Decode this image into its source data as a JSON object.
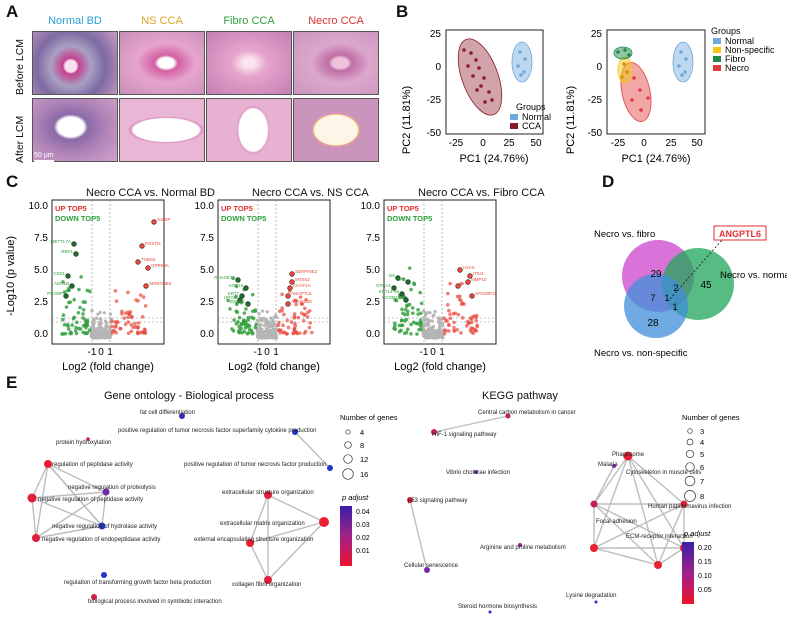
{
  "panel_letters": {
    "a": "A",
    "b": "B",
    "c": "C",
    "d": "D",
    "e": "E"
  },
  "panel_a": {
    "columns": [
      "Normal BD",
      "NS CCA",
      "Fibro CCA",
      "Necro CCA"
    ],
    "column_colors": [
      "#29a3d6",
      "#e0a020",
      "#2e9e3a",
      "#e03030"
    ],
    "rows": [
      "Before LCM",
      "After LCM"
    ],
    "scale_bar": "50 μm"
  },
  "panel_b": {
    "left": {
      "xlabel": "PC1 (24.76%)",
      "ylabel": "PC2 (11.81%)",
      "legend_title": "Groups",
      "legend": [
        "Normal",
        "CCA"
      ],
      "colors": [
        "#6fa8dc",
        "#8b1a2b"
      ]
    },
    "right": {
      "xlabel": "PC1 (24.76%)",
      "ylabel": "PC2 (11.81%)",
      "legend_title": "Groups",
      "legend": [
        "Normal",
        "Non-specific",
        "Fibro",
        "Necro"
      ],
      "colors": [
        "#6fa8dc",
        "#f5c518",
        "#1f8a4c",
        "#e33b3b"
      ]
    },
    "xticks": [
      "-25",
      "0",
      "25",
      "50"
    ],
    "yticks": [
      "25",
      "0",
      "-25",
      "-50"
    ]
  },
  "panel_c": {
    "plots": [
      {
        "title": "Necro CCA vs. Normal BD",
        "up_genes": [
          "S100P",
          "POSTN",
          "THBS2",
          "GPR63A",
          "SERPINE5"
        ],
        "down_genes": [
          "METTL7A",
          "RBP1",
          "CD01",
          "ADH1B",
          "PCGBP"
        ]
      },
      {
        "title": "Necro CCA vs. NS CCA",
        "up_genes": [
          "SERPINE2",
          "MTSS2",
          "CHAF1A",
          "ANGPTL6",
          "ANKRD36"
        ],
        "down_genes": [
          "RNASET2",
          "KRT19",
          "KRT7",
          "HPGD",
          "ENPP1"
        ]
      },
      {
        "title": "Necro CCA vs. Fibro CCA",
        "up_genes": [
          "H2AX",
          "ITIH1",
          "MMP10",
          "NT5",
          "SPS28P11"
        ],
        "down_genes": [
          "NS",
          "SP2",
          "GFRA1",
          "KRT14-69",
          "ECGB2A3"
        ]
      }
    ],
    "up_label": "UP TOP5",
    "down_label": "DOWN TOP5",
    "xlabel": "Log2 (fold change)",
    "ylabel": "-Log10 (p value)",
    "yticks": [
      "10.0",
      "7.5",
      "5.0",
      "2.5",
      "0.0"
    ],
    "xticks": [
      "-1",
      "0",
      "1"
    ]
  },
  "panel_d": {
    "sets": [
      "Necro vs. fibro",
      "Necro vs. normal",
      "Necro vs. non-specific"
    ],
    "counts": {
      "fibro_only": "29",
      "normal_only": "45",
      "ns_only": "28",
      "fibro_normal": "2",
      "fibro_ns": "7",
      "normal_ns": "1",
      "all": "1"
    },
    "callout": "ANGPTL6"
  },
  "panel_e": {
    "go_title": "Gene ontology - Biological process",
    "kegg_title": "KEGG pathway",
    "go_terms": [
      "fat cell differentiation",
      "positive regulation of tumor necrosis factor superfamily cytokine production",
      "protein hydroxylation",
      "positive regulation of tumor necrosis factor production",
      "regulation of peptidase activity",
      "negative regulation of proteolysis",
      "negative regulation of peptidase activity",
      "extracellular structure organization",
      "negative regulation of hydrolase activity",
      "extracellular matrix organization",
      "negative regulation of endopeptidase activity",
      "external encapsulating structure organization",
      "collagen fibril organization",
      "regulation of transforming growth factor beta production",
      "biological process involved in symbiotic interaction"
    ],
    "kegg_terms": [
      "Central carbon metabolism in cancer",
      "HIF-1 signaling pathway",
      "Phagosome",
      "Malaria",
      "Cytoskeleton in muscle cells",
      "Vibrio cholerae infection",
      "p53 signaling pathway",
      "Human papillomavirus infection",
      "Focal adhesion",
      "ECM-receptor interaction",
      "Arginine and proline metabolism",
      "Cellular senescence",
      "Lysine degradation",
      "Steroid hormone biosynthesis"
    ],
    "go_size_legend": {
      "title": "Number of genes",
      "values": [
        "4",
        "8",
        "12",
        "16"
      ]
    },
    "go_color_legend": {
      "title": "p adjust",
      "ticks": [
        "0.04",
        "0.03",
        "0.02",
        "0.01"
      ]
    },
    "kegg_size_legend": {
      "title": "Number of genes",
      "values": [
        "3",
        "4",
        "5",
        "6",
        "7",
        "8"
      ]
    },
    "kegg_color_legend": {
      "title": "p adjust",
      "ticks": [
        "0.20",
        "0.15",
        "0.10",
        "0.05"
      ]
    }
  },
  "colors": {
    "up": "#e8473a",
    "down": "#2e9e3a",
    "ns": "#b5b5b5"
  }
}
